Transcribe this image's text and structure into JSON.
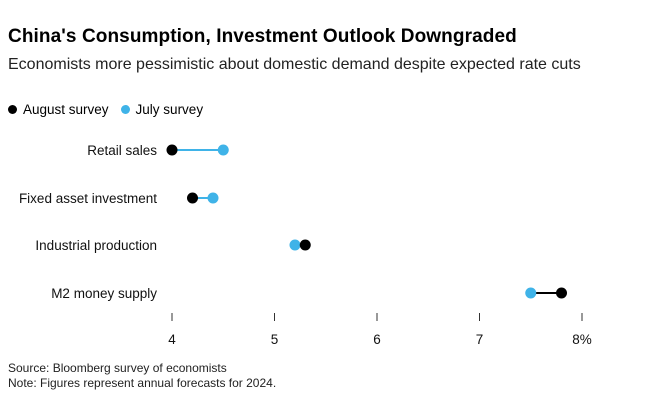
{
  "header": {
    "title": "China's Consumption, Investment Outlook Downgraded",
    "subtitle": "Economists more pessimistic about domestic demand despite expected rate cuts"
  },
  "legend": [
    {
      "label": "August survey",
      "color": "#000000"
    },
    {
      "label": "July survey",
      "color": "#3fb3e8"
    }
  ],
  "footer": {
    "source": "Source: Bloomberg survey of economists",
    "note": "Note: Figures represent annual forecasts for 2024."
  },
  "chart_data": {
    "type": "dumbbell",
    "categories": [
      "Retail sales",
      "Fixed asset investment",
      "Industrial production",
      "M2 money supply"
    ],
    "series": [
      {
        "name": "August survey",
        "color": "#000000",
        "values": [
          4.0,
          4.2,
          5.3,
          7.8
        ]
      },
      {
        "name": "July survey",
        "color": "#3fb3e8",
        "values": [
          4.5,
          4.4,
          5.2,
          7.5
        ]
      }
    ],
    "connector_colors": [
      "#3fb3e8",
      "#3fb3e8",
      "#000000",
      "#000000"
    ],
    "xticks": [
      4,
      5,
      6,
      7,
      8
    ],
    "xtick_labels": [
      "4",
      "5",
      "6",
      "7",
      "8%"
    ],
    "xlim": [
      4,
      8
    ],
    "grid": false,
    "legend_position": "top-left"
  }
}
